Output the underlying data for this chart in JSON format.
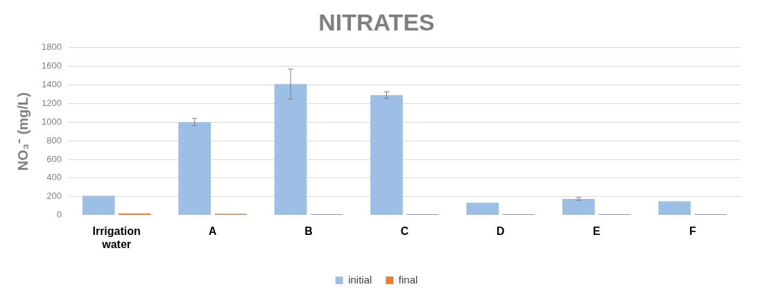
{
  "chart_data": {
    "type": "bar",
    "title": "NITRATES",
    "ylabel": "NO₃⁻ (mg/L)",
    "categories": [
      "Irrigation water",
      "A",
      "B",
      "C",
      "D",
      "E",
      "F"
    ],
    "series": [
      {
        "name": "initial",
        "color": "#9dbfe6",
        "values": [
          210,
          1000,
          1410,
          1290,
          135,
          175,
          150
        ],
        "errors": [
          null,
          40,
          160,
          35,
          null,
          15,
          null
        ]
      },
      {
        "name": "final",
        "color": "#ed7d31",
        "values": [
          20,
          15,
          12,
          12,
          12,
          12,
          12
        ]
      }
    ],
    "ylim": [
      0,
      1800
    ],
    "yticks": [
      0,
      200,
      400,
      600,
      800,
      1000,
      1200,
      1400,
      1600,
      1800
    ],
    "grid": "y",
    "legend": "bottom"
  }
}
